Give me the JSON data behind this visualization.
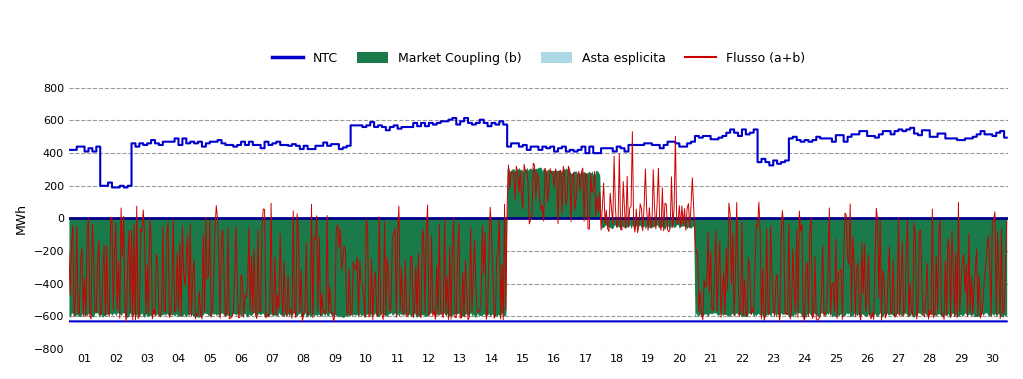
{
  "title": "",
  "ylabel": "MWh",
  "ylim": [
    -800,
    800
  ],
  "yticks": [
    -800,
    -600,
    -400,
    -200,
    0,
    200,
    400,
    600,
    800
  ],
  "xtick_labels": [
    "01",
    "02",
    "03",
    "04",
    "05",
    "06",
    "07",
    "08",
    "09",
    "10",
    "11",
    "12",
    "13",
    "14",
    "15",
    "16",
    "17",
    "18",
    "19",
    "20",
    "21",
    "22",
    "23",
    "24",
    "25",
    "26",
    "27",
    "28",
    "29",
    "30"
  ],
  "ntc_color": "#0000cc",
  "market_coupling_color": "#1a7a4a",
  "asta_esplicita_color": "#add8e6",
  "flusso_color": "#cc0000",
  "bg_color": "#ffffff",
  "legend_entries": [
    "NTC",
    "Market Coupling (b)",
    "Asta esplicita",
    "Flusso (a+b)"
  ],
  "hours_per_day": 24,
  "n_days": 30,
  "grid_color": "#808080",
  "grid_style": "--",
  "zero_line_color": "#00008B",
  "ntc_upper_by_day": [
    420,
    200,
    460,
    470,
    460,
    450,
    450,
    445,
    445,
    570,
    560,
    585,
    595,
    585,
    440,
    420,
    420,
    430,
    450,
    450,
    505,
    525,
    345,
    490,
    490,
    515,
    535,
    520,
    490,
    515
  ],
  "ntc_lower_val": -630,
  "mc_base_by_day": [
    -590,
    -590,
    -590,
    -590,
    -590,
    -590,
    -590,
    -590,
    -590,
    -590,
    -590,
    -590,
    -590,
    -590,
    300,
    300,
    280,
    -50,
    -50,
    -50,
    -590,
    -590,
    -590,
    -590,
    -590,
    -590,
    -590,
    -590,
    -590,
    -590
  ],
  "flusso_spike_hours": [
    2,
    3,
    5,
    6,
    9,
    10,
    14,
    15,
    18,
    19,
    22,
    23,
    26,
    27,
    32,
    36,
    38,
    42,
    45,
    48,
    50,
    55,
    58,
    60,
    63,
    68,
    72,
    75,
    80,
    85,
    88,
    90,
    95,
    100,
    105,
    108,
    112,
    115,
    118,
    122,
    128,
    132,
    138,
    145,
    150,
    155,
    158,
    162,
    165,
    168,
    172,
    175,
    178,
    182,
    188,
    192,
    198,
    205,
    210,
    215,
    218,
    225,
    228,
    232,
    238,
    242,
    248,
    252,
    255,
    258,
    262,
    268,
    272,
    275,
    278,
    282,
    288,
    292,
    295,
    298,
    302,
    305,
    308,
    312,
    318,
    322,
    328,
    332,
    338,
    342,
    348,
    352,
    355,
    358,
    362,
    368,
    372,
    375,
    378,
    382,
    388,
    392,
    398,
    405,
    410,
    415,
    418,
    422,
    425,
    428,
    432,
    438,
    442,
    448,
    452,
    455,
    458,
    462,
    465,
    468,
    472,
    478,
    482,
    488,
    492,
    495,
    498,
    502,
    505,
    508,
    512,
    518,
    522,
    528,
    532,
    535,
    538,
    542,
    548,
    552,
    555,
    558,
    562,
    565,
    568,
    572,
    578,
    582,
    585,
    588,
    592,
    598,
    602,
    605,
    608,
    612,
    618,
    622,
    625,
    628,
    632,
    638,
    642,
    645,
    648,
    652,
    658,
    662,
    665,
    668,
    672,
    675,
    678,
    682,
    688,
    692,
    695,
    698,
    702,
    705,
    708,
    712,
    718
  ]
}
